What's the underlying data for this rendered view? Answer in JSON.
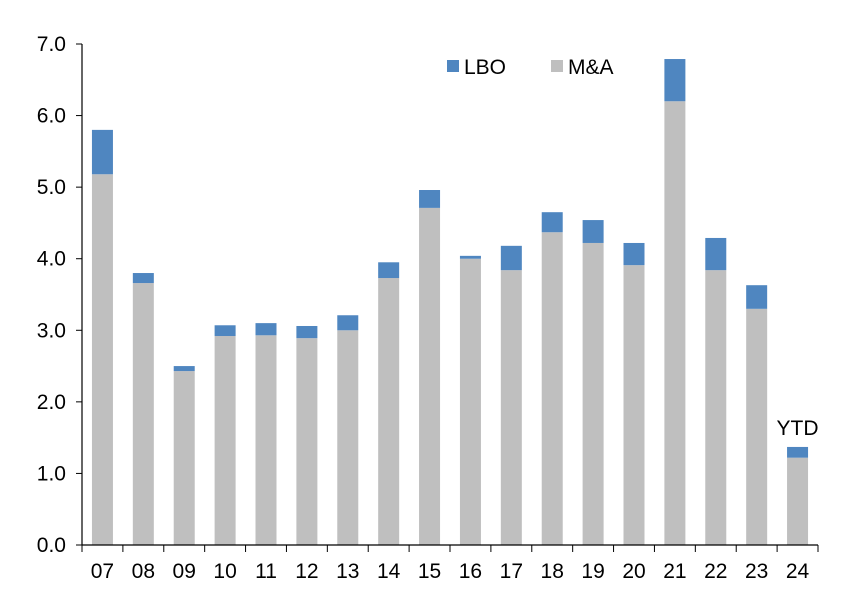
{
  "chart_data": {
    "type": "bar",
    "stacked": true,
    "categories": [
      "07",
      "08",
      "09",
      "10",
      "11",
      "12",
      "13",
      "14",
      "15",
      "16",
      "17",
      "18",
      "19",
      "20",
      "21",
      "22",
      "23",
      "24"
    ],
    "series": [
      {
        "name": "M&A",
        "color": "#bfbfbf",
        "values": [
          5.18,
          3.66,
          2.43,
          2.92,
          2.93,
          2.89,
          3.0,
          3.73,
          4.71,
          4.0,
          3.84,
          4.37,
          4.22,
          3.91,
          6.2,
          3.84,
          3.3,
          1.22
        ]
      },
      {
        "name": "LBO",
        "color": "#4f86c0",
        "values": [
          0.62,
          0.14,
          0.07,
          0.15,
          0.17,
          0.17,
          0.21,
          0.22,
          0.25,
          0.04,
          0.34,
          0.28,
          0.32,
          0.31,
          0.59,
          0.45,
          0.33,
          0.15
        ]
      }
    ],
    "ylim": [
      0,
      7
    ],
    "yticks": [
      "0.0",
      "1.0",
      "2.0",
      "3.0",
      "4.0",
      "5.0",
      "6.0",
      "7.0"
    ],
    "grid": false,
    "legend_position": "top-center",
    "legend_order": [
      "LBO",
      "M&A"
    ],
    "annotations": [
      {
        "category": "24",
        "text": "YTD"
      }
    ]
  }
}
